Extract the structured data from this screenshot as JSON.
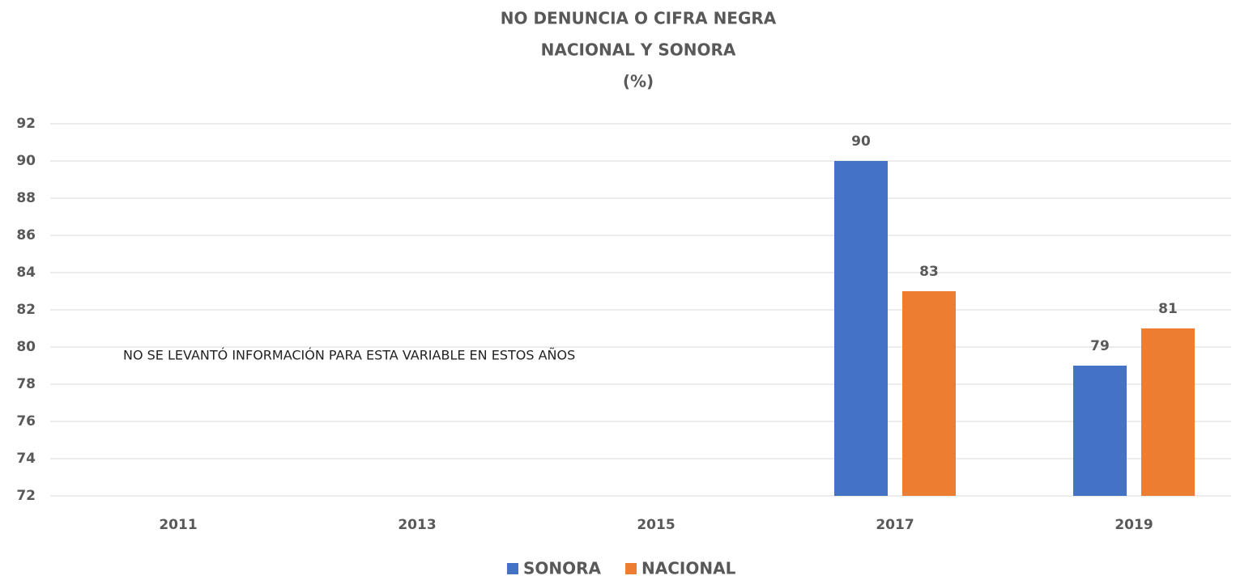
{
  "chart_data": {
    "type": "bar",
    "title": [
      "NO DENUNCIA O CIFRA NEGRA",
      "NACIONAL Y SONORA",
      "(%)"
    ],
    "annotation": "NO SE LEVANTÓ INFORMACIÓN PARA ESTA VARIABLE EN ESTOS AÑOS",
    "categories": [
      "2011",
      "2013",
      "2015",
      "2017",
      "2019"
    ],
    "series": [
      {
        "name": "SONORA",
        "color": "#4472c4",
        "values": [
          null,
          null,
          null,
          90,
          79
        ]
      },
      {
        "name": "NACIONAL",
        "color": "#ed7d31",
        "values": [
          null,
          null,
          null,
          83,
          81
        ]
      }
    ],
    "ylim": [
      72,
      92
    ],
    "yticks": [
      72,
      74,
      76,
      78,
      80,
      82,
      84,
      86,
      88,
      90,
      92
    ],
    "grid": true,
    "legend": "bottom"
  }
}
